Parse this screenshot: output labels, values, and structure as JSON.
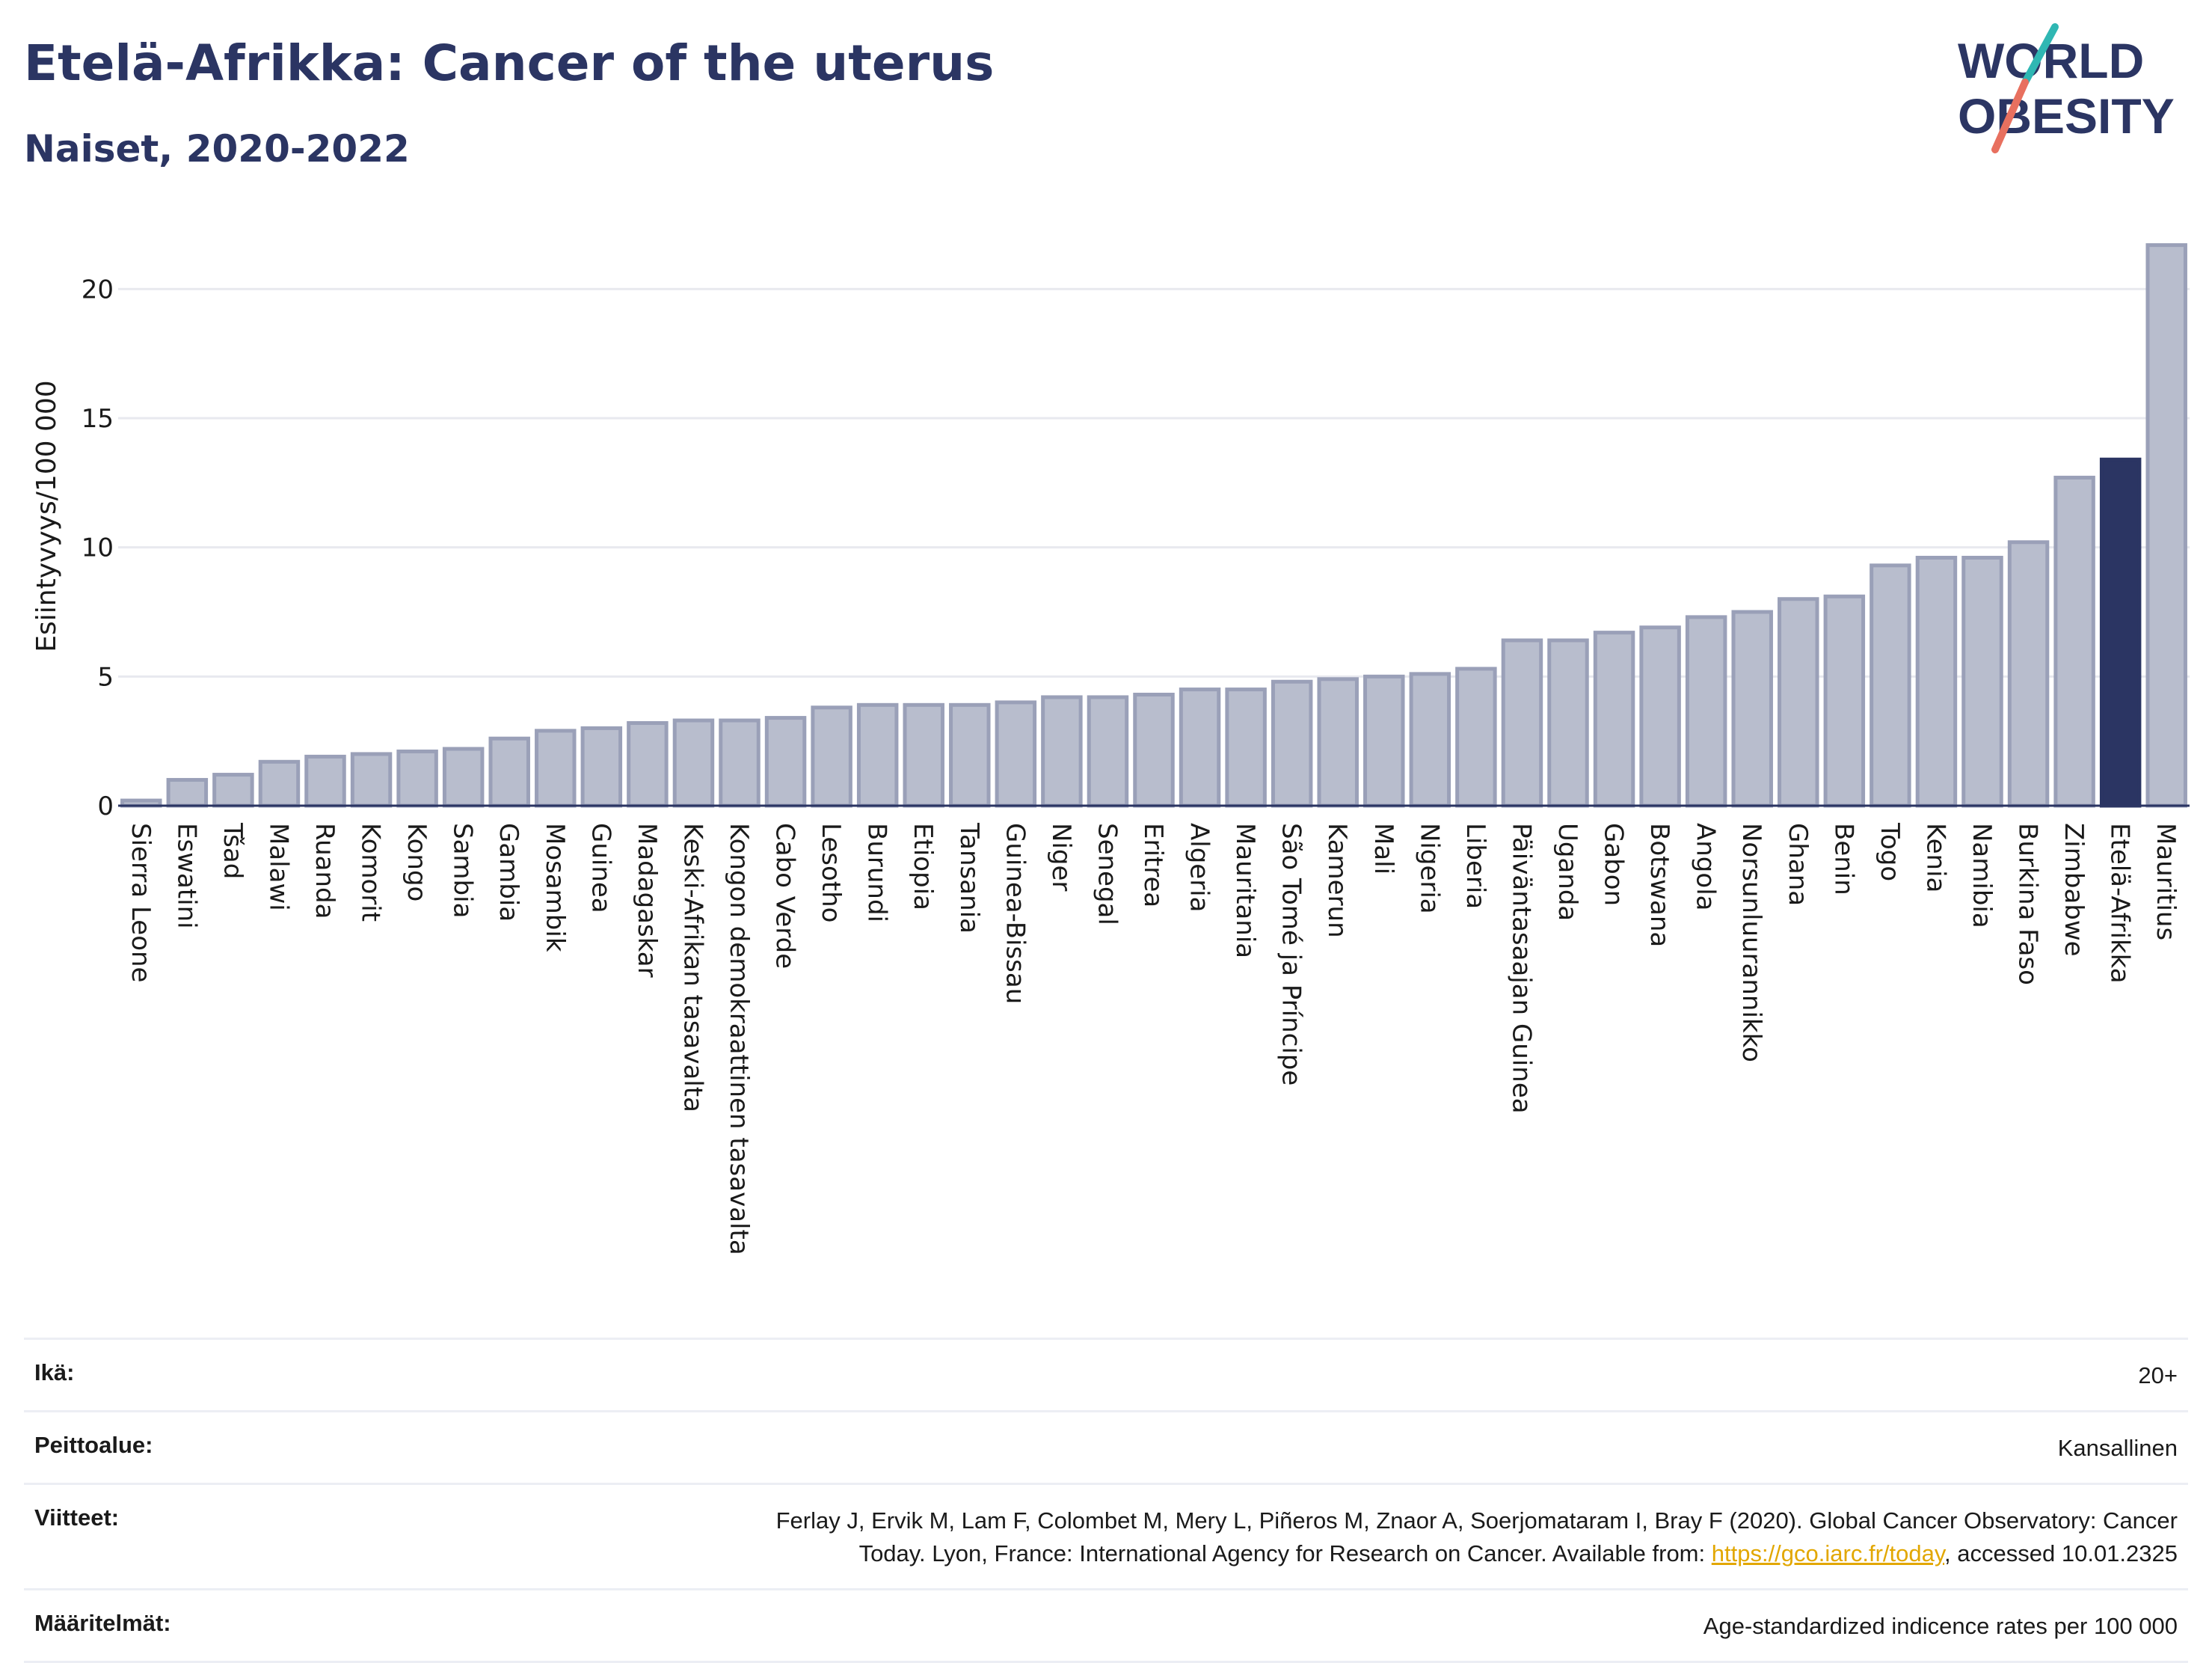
{
  "header": {
    "title": "Etelä-Afrikka: Cancer of the uterus",
    "subtitle": "Naiset, 2020-2022",
    "logo_line1": "WORLD",
    "logo_line2": "OBESITY"
  },
  "colors": {
    "bar": "#b8bdcd",
    "bar_stroke": "#9aa0b8",
    "highlight": "#2b3563",
    "axis": "#2b3563",
    "grid": "#e8e9ef",
    "logo_teal": "#2fb7b3",
    "logo_coral": "#e8705f"
  },
  "chart_data": {
    "type": "bar",
    "title": "Etelä-Afrikka: Cancer of the uterus",
    "ylabel": "Esiintyvyys/100 000",
    "ylim": [
      0,
      22.5
    ],
    "yticks": [
      0,
      5,
      10,
      15,
      20
    ],
    "grid": true,
    "highlight": "Etelä-Afrikka",
    "categories": [
      "Sierra Leone",
      "Eswatini",
      "Tšad",
      "Malawi",
      "Ruanda",
      "Komorit",
      "Kongo",
      "Sambia",
      "Gambia",
      "Mosambik",
      "Guinea",
      "Madagaskar",
      "Keski-Afrikan tasavalta",
      "Kongon demokraattinen tasavalta",
      "Cabo Verde",
      "Lesotho",
      "Burundi",
      "Etiopia",
      "Tansania",
      "Guinea-Bissau",
      "Niger",
      "Senegal",
      "Eritrea",
      "Algeria",
      "Mauritania",
      "São Tomé ja Príncipe",
      "Kamerun",
      "Mali",
      "Nigeria",
      "Liberia",
      "Päiväntasaajan Guinea",
      "Uganda",
      "Gabon",
      "Botswana",
      "Angola",
      "Norsunluurannikko",
      "Ghana",
      "Benin",
      "Togo",
      "Kenia",
      "Namibia",
      "Burkina Faso",
      "Zimbabwe",
      "Etelä-Afrikka",
      "Mauritius"
    ],
    "values": [
      0.2,
      1.0,
      1.2,
      1.7,
      1.9,
      2.0,
      2.1,
      2.2,
      2.6,
      2.9,
      3.0,
      3.2,
      3.3,
      3.3,
      3.4,
      3.8,
      3.9,
      3.9,
      3.9,
      4.0,
      4.2,
      4.2,
      4.3,
      4.5,
      4.5,
      4.8,
      4.9,
      5.0,
      5.1,
      5.3,
      6.4,
      6.4,
      6.7,
      6.9,
      7.3,
      7.5,
      8.0,
      8.1,
      9.3,
      9.6,
      9.6,
      10.2,
      12.7,
      13.4,
      21.7
    ]
  },
  "meta": {
    "age_label": "Ikä:",
    "age_value": "20+",
    "coverage_label": "Peittoalue:",
    "coverage_value": "Kansallinen",
    "refs_label": "Viitteet:",
    "refs_line1": "Ferlay J, Ervik M, Lam F, Colombet M, Mery L, Piñeros M, Znaor A, Soerjomataram I, Bray F (2020). Global Cancer Observatory: Cancer",
    "refs_line2_pre": "Today. Lyon, France: International Agency for Research on Cancer. Available from: ",
    "refs_link": "https://gco.iarc.fr/today",
    "refs_line2_post": ", accessed 10.01.2325",
    "defs_label": "Määritelmät:",
    "defs_value": "Age-standardized indicence rates per 100 000"
  }
}
